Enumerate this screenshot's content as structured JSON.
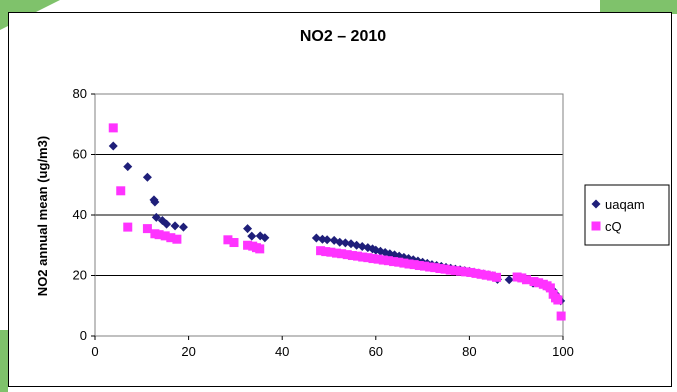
{
  "chart_data": {
    "type": "scatter",
    "title": "NO2 – 2010",
    "xlabel": "",
    "ylabel": "NO2 annual mean (ug/m3)",
    "xlim": [
      0,
      100
    ],
    "ylim": [
      0,
      80
    ],
    "xticks": [
      "0",
      "20",
      "40",
      "60",
      "80",
      "100"
    ],
    "yticks": [
      "0",
      "20",
      "40",
      "60",
      "80"
    ],
    "grid": "horizontal",
    "legend_position": "right",
    "series": [
      {
        "name": "uaqam",
        "color": "#1f1f7a",
        "marker": "diamond",
        "points": [
          [
            3.9,
            62.8
          ],
          [
            7.0,
            56.0
          ],
          [
            11.2,
            52.5
          ],
          [
            12.6,
            45.0
          ],
          [
            12.8,
            44.3
          ],
          [
            13.1,
            39.2
          ],
          [
            14.4,
            38.2
          ],
          [
            15.3,
            37.0
          ],
          [
            17.1,
            36.4
          ],
          [
            18.9,
            36.0
          ],
          [
            32.6,
            35.5
          ],
          [
            33.5,
            33.0
          ],
          [
            35.3,
            33.1
          ],
          [
            36.3,
            32.5
          ],
          [
            47.3,
            32.4
          ],
          [
            48.6,
            32.0
          ],
          [
            49.6,
            31.8
          ],
          [
            51.1,
            31.6
          ],
          [
            52.3,
            31.0
          ],
          [
            53.5,
            30.8
          ],
          [
            54.7,
            30.5
          ],
          [
            55.9,
            30.0
          ],
          [
            57.1,
            29.6
          ],
          [
            58.3,
            29.2
          ],
          [
            59.3,
            28.8
          ],
          [
            60.0,
            28.4
          ],
          [
            61.0,
            28.0
          ],
          [
            62.0,
            27.6
          ],
          [
            63.0,
            27.2
          ],
          [
            64.0,
            26.8
          ],
          [
            65.0,
            26.4
          ],
          [
            66.0,
            26.0
          ],
          [
            67.0,
            25.6
          ],
          [
            68.0,
            25.2
          ],
          [
            69.0,
            24.8
          ],
          [
            70.0,
            24.4
          ],
          [
            71.0,
            24.0
          ],
          [
            72.0,
            23.6
          ],
          [
            73.0,
            23.3
          ],
          [
            74.0,
            23.0
          ],
          [
            75.0,
            22.7
          ],
          [
            76.0,
            22.4
          ],
          [
            77.0,
            22.1
          ],
          [
            78.0,
            21.9
          ],
          [
            79.0,
            21.6
          ],
          [
            80.0,
            21.4
          ],
          [
            81.0,
            21.1
          ],
          [
            82.0,
            20.8
          ],
          [
            83.0,
            20.5
          ],
          [
            84.0,
            20.2
          ],
          [
            85.0,
            19.9
          ],
          [
            86.0,
            18.7
          ],
          [
            88.5,
            18.6
          ],
          [
            90.5,
            19.3
          ],
          [
            91.6,
            19.0
          ],
          [
            93.6,
            17.5
          ],
          [
            95.0,
            17.6
          ],
          [
            96.3,
            16.5
          ],
          [
            97.3,
            15.8
          ],
          [
            97.8,
            15.2
          ],
          [
            98.4,
            13.9
          ],
          [
            98.9,
            12.8
          ],
          [
            99.5,
            11.6
          ]
        ]
      },
      {
        "name": "cQ",
        "color": "#ff33ff",
        "marker": "square",
        "points": [
          [
            3.9,
            68.8
          ],
          [
            5.5,
            48.0
          ],
          [
            7.0,
            36.0
          ],
          [
            11.2,
            35.5
          ],
          [
            12.8,
            33.8
          ],
          [
            13.7,
            33.5
          ],
          [
            15.0,
            33.1
          ],
          [
            16.2,
            32.5
          ],
          [
            17.5,
            32.0
          ],
          [
            28.4,
            31.8
          ],
          [
            29.7,
            30.9
          ],
          [
            32.6,
            30.0
          ],
          [
            33.7,
            29.7
          ],
          [
            34.5,
            29.2
          ],
          [
            35.2,
            28.8
          ],
          [
            48.2,
            28.2
          ],
          [
            49.3,
            27.9
          ],
          [
            50.4,
            27.7
          ],
          [
            51.6,
            27.4
          ],
          [
            52.7,
            27.2
          ],
          [
            53.9,
            26.9
          ],
          [
            55.0,
            26.6
          ],
          [
            56.1,
            26.4
          ],
          [
            57.2,
            26.1
          ],
          [
            58.3,
            25.9
          ],
          [
            59.4,
            25.6
          ],
          [
            60.5,
            25.4
          ],
          [
            61.6,
            25.1
          ],
          [
            62.7,
            24.9
          ],
          [
            63.8,
            24.6
          ],
          [
            64.9,
            24.4
          ],
          [
            66.0,
            24.1
          ],
          [
            67.1,
            23.8
          ],
          [
            68.2,
            23.6
          ],
          [
            69.3,
            23.3
          ],
          [
            70.4,
            23.1
          ],
          [
            71.5,
            22.8
          ],
          [
            72.6,
            22.6
          ],
          [
            73.7,
            22.3
          ],
          [
            74.8,
            22.1
          ],
          [
            75.9,
            21.8
          ],
          [
            77.0,
            21.6
          ],
          [
            78.1,
            21.4
          ],
          [
            79.2,
            21.2
          ],
          [
            80.3,
            21.0
          ],
          [
            81.4,
            20.7
          ],
          [
            82.5,
            20.4
          ],
          [
            83.6,
            20.1
          ],
          [
            84.7,
            19.8
          ],
          [
            85.8,
            19.4
          ],
          [
            90.2,
            19.5
          ],
          [
            91.2,
            19.2
          ],
          [
            92.2,
            18.6
          ],
          [
            93.8,
            18.0
          ],
          [
            94.8,
            17.6
          ],
          [
            95.8,
            17.1
          ],
          [
            96.6,
            16.6
          ],
          [
            97.3,
            15.9
          ],
          [
            97.9,
            13.8
          ],
          [
            98.4,
            12.6
          ],
          [
            98.9,
            11.9
          ],
          [
            99.6,
            6.6
          ]
        ]
      }
    ]
  }
}
